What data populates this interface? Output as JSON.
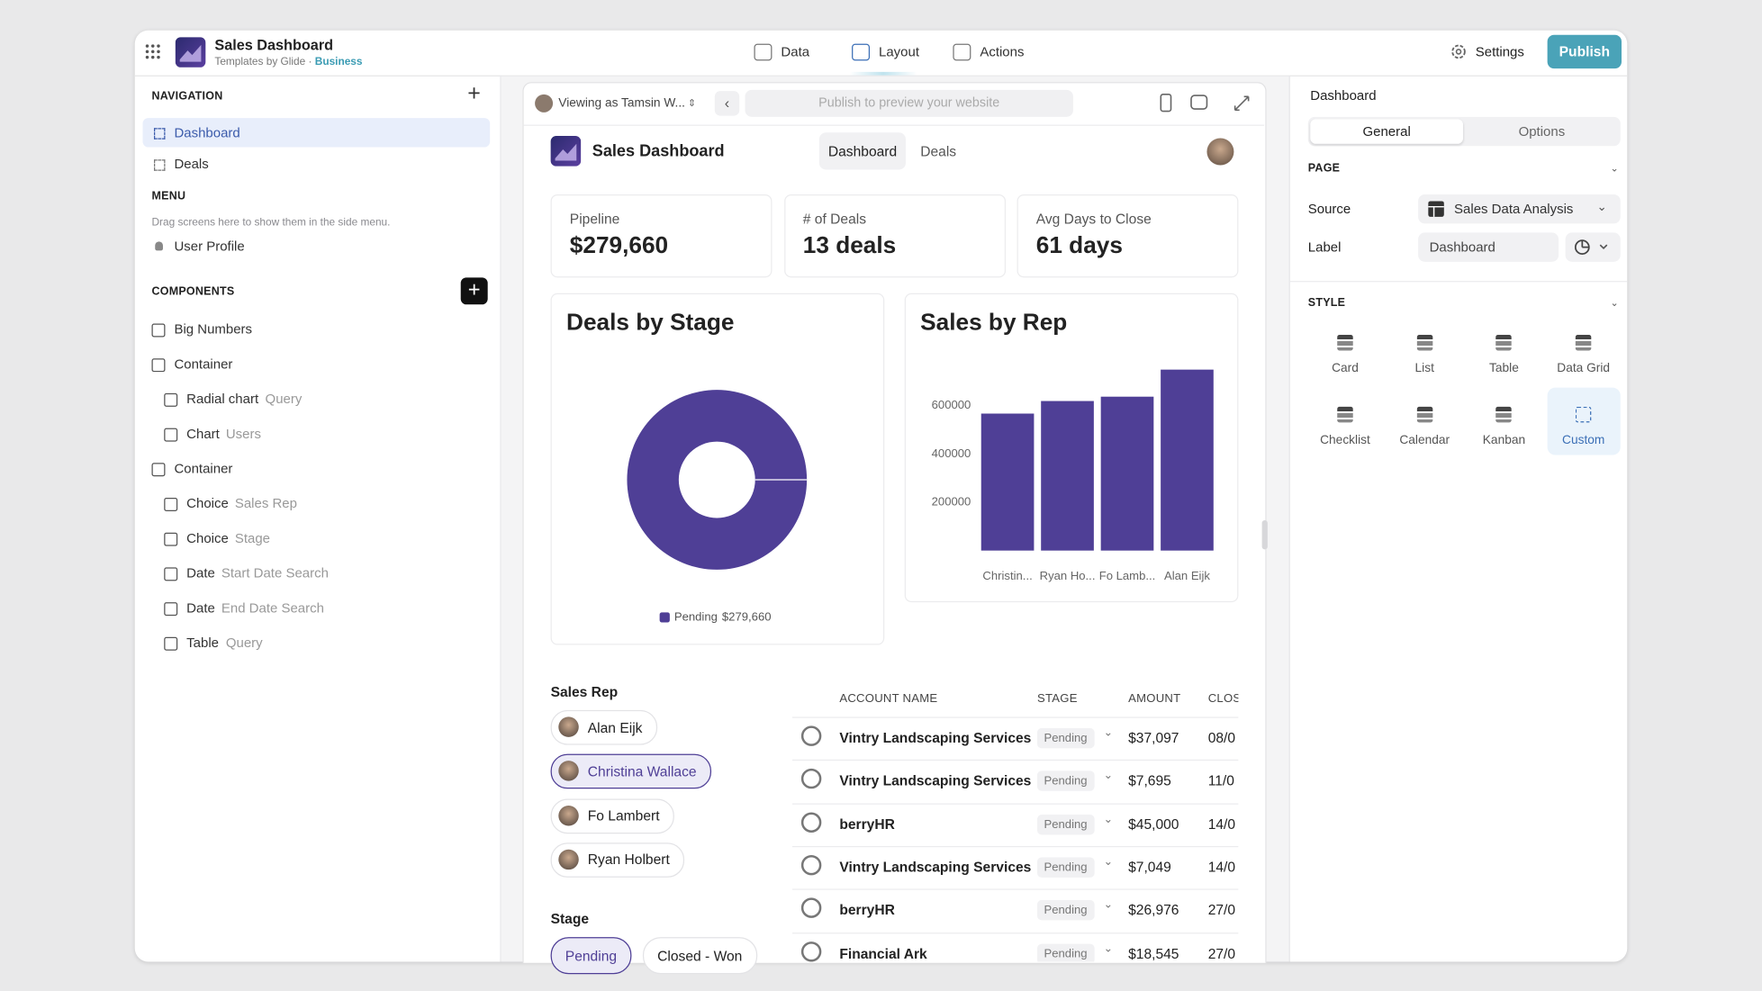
{
  "app": {
    "title": "Sales Dashboard",
    "byline": "Templates by Glide ·",
    "plan": "Business"
  },
  "topnav": [
    "Data",
    "Layout",
    "Actions"
  ],
  "active_topnav": 1,
  "settings": "Settings",
  "publish": "Publish",
  "left": {
    "navigation_heading": "NAVIGATION",
    "nav": [
      "Dashboard",
      "Deals"
    ],
    "selected_nav": 0,
    "menu_heading": "MENU",
    "menu_hint": "Drag screens here to show them in the side menu.",
    "menu_items": [
      "User Profile"
    ],
    "components_heading": "COMPONENTS",
    "components": [
      {
        "name": "Big Numbers"
      },
      {
        "name": "Container",
        "children": [
          {
            "name": "Radial chart",
            "source": "Query"
          },
          {
            "name": "Chart",
            "source": "Users"
          }
        ]
      },
      {
        "name": "Container",
        "children": [
          {
            "name": "Choice",
            "source": "Sales Rep"
          },
          {
            "name": "Choice",
            "source": "Stage"
          },
          {
            "name": "Date",
            "source": "Start Date Search"
          },
          {
            "name": "Date",
            "source": "End Date Search"
          },
          {
            "name": "Table",
            "source": "Query"
          }
        ]
      }
    ]
  },
  "preview": {
    "viewing": "Viewing as Tamsin W...",
    "url": "Publish to preview your website",
    "title": "Sales Dashboard",
    "tabs": [
      "Dashboard",
      "Deals"
    ],
    "selected_tab": 0,
    "stats": [
      {
        "label": "Pipeline",
        "value": "$279,660"
      },
      {
        "label": "# of Deals",
        "value": "13 deals"
      },
      {
        "label": "Avg Days to Close",
        "value": "61 days"
      }
    ],
    "filters": {
      "sales_rep_label": "Sales Rep",
      "reps": [
        "Alan Eijk",
        "Christina Wallace",
        "Fo Lambert",
        "Ryan Holbert"
      ],
      "selected_rep": 1,
      "stage_label": "Stage",
      "stages": [
        "Pending",
        "Closed - Won"
      ],
      "selected_stage": 0
    },
    "table": {
      "columns": [
        "ACCOUNT NAME",
        "STAGE",
        "AMOUNT",
        "CLOS"
      ],
      "rows": [
        [
          "Vintry Landscaping Services",
          "Pending",
          "$37,097",
          "08/0"
        ],
        [
          "Vintry Landscaping Services",
          "Pending",
          "$7,695",
          "11/0"
        ],
        [
          "berryHR",
          "Pending",
          "$45,000",
          "14/0"
        ],
        [
          "Vintry Landscaping Services",
          "Pending",
          "$7,049",
          "14/0"
        ],
        [
          "berryHR",
          "Pending",
          "$26,976",
          "27/0"
        ],
        [
          "Financial Ark",
          "Pending",
          "$18,545",
          "27/0"
        ]
      ]
    }
  },
  "chart_data": [
    {
      "type": "pie",
      "title": "Deals by Stage",
      "categories": [
        "Pending"
      ],
      "values": [
        279660
      ],
      "value_labels": [
        "$279,660"
      ],
      "color": "#4f3f96"
    },
    {
      "type": "bar",
      "title": "Sales by Rep",
      "categories": [
        "Christin...",
        "Ryan Ho...",
        "Fo Lamb...",
        "Alan Eijk"
      ],
      "values": [
        567000,
        619000,
        637000,
        749000
      ],
      "ylim": [
        0,
        800000
      ],
      "yticks": [
        200000,
        400000,
        600000
      ],
      "color": "#4f3f96"
    }
  ],
  "right": {
    "title": "Dashboard",
    "tabs": [
      "General",
      "Options"
    ],
    "selected_tab": 0,
    "page_heading": "PAGE",
    "source_label": "Source",
    "source_value": "Sales Data Analysis",
    "label_label": "Label",
    "label_value": "Dashboard",
    "style_heading": "STYLE",
    "styles": [
      "Card",
      "List",
      "Table",
      "Data Grid",
      "Checklist",
      "Calendar",
      "Kanban",
      "Custom"
    ],
    "selected_style": 7
  }
}
